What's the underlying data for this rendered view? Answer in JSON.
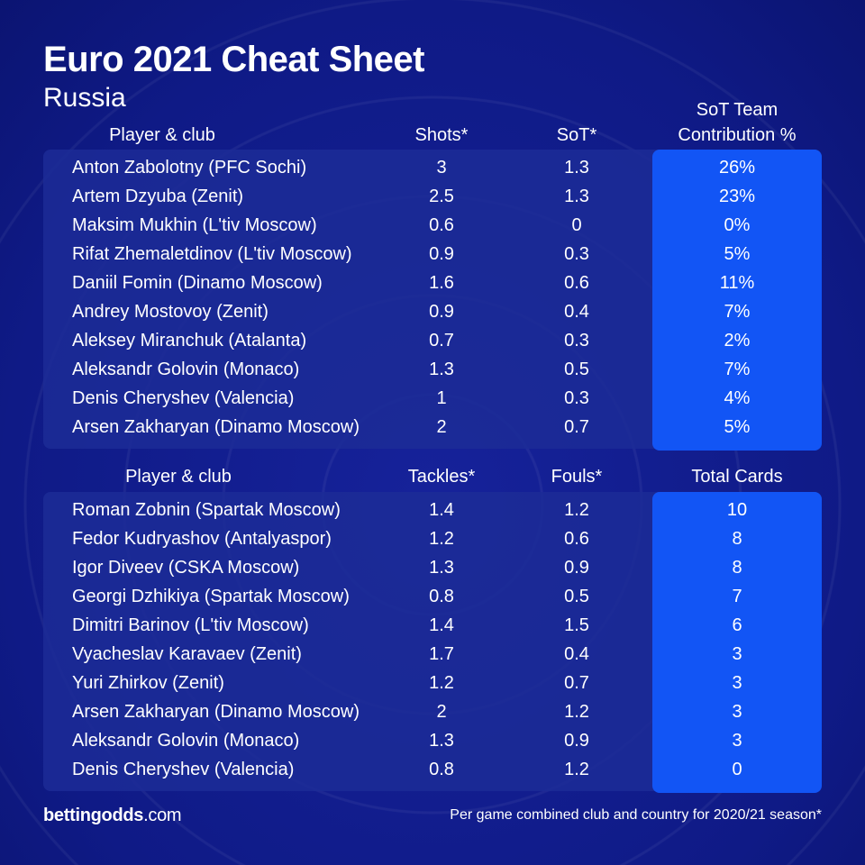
{
  "title": "Euro 2021 Cheat Sheet",
  "subtitle": "Russia",
  "table1": {
    "headers": {
      "player": "Player & club",
      "a": "Shots*",
      "b": "SoT*",
      "c_line1": "SoT Team",
      "c_line2": "Contribution %"
    },
    "rows": [
      {
        "name": "Anton Zabolotny (PFC Sochi)",
        "a": "3",
        "b": "1.3",
        "c": "26%"
      },
      {
        "name": "Artem Dzyuba (Zenit)",
        "a": "2.5",
        "b": "1.3",
        "c": "23%"
      },
      {
        "name": "Maksim Mukhin (L'tiv Moscow)",
        "a": "0.6",
        "b": "0",
        "c": "0%"
      },
      {
        "name": "Rifat Zhemaletdinov (L'tiv Moscow)",
        "a": "0.9",
        "b": "0.3",
        "c": "5%"
      },
      {
        "name": "Daniil Fomin (Dinamo Moscow)",
        "a": "1.6",
        "b": "0.6",
        "c": "11%"
      },
      {
        "name": "Andrey Mostovoy (Zenit)",
        "a": "0.9",
        "b": "0.4",
        "c": "7%"
      },
      {
        "name": "Aleksey Miranchuk (Atalanta)",
        "a": "0.7",
        "b": "0.3",
        "c": "2%"
      },
      {
        "name": "Aleksandr Golovin (Monaco)",
        "a": "1.3",
        "b": "0.5",
        "c": "7%"
      },
      {
        "name": "Denis Cheryshev (Valencia)",
        "a": "1",
        "b": "0.3",
        "c": "4%"
      },
      {
        "name": "Arsen Zakharyan (Dinamo Moscow)",
        "a": "2",
        "b": "0.7",
        "c": "5%"
      }
    ]
  },
  "table2": {
    "headers": {
      "player": "Player & club",
      "a": "Tackles*",
      "b": "Fouls*",
      "c": "Total Cards"
    },
    "rows": [
      {
        "name": "Roman Zobnin (Spartak Moscow)",
        "a": "1.4",
        "b": "1.2",
        "c": "10"
      },
      {
        "name": "Fedor Kudryashov (Antalyaspor)",
        "a": "1.2",
        "b": "0.6",
        "c": "8"
      },
      {
        "name": "Igor Diveev (CSKA Moscow)",
        "a": "1.3",
        "b": "0.9",
        "c": "8"
      },
      {
        "name": "Georgi Dzhikiya (Spartak Moscow)",
        "a": "0.8",
        "b": "0.5",
        "c": "7"
      },
      {
        "name": "Dimitri Barinov (L'tiv Moscow)",
        "a": "1.4",
        "b": "1.5",
        "c": "6"
      },
      {
        "name": "Vyacheslav Karavaev (Zenit)",
        "a": "1.7",
        "b": "0.4",
        "c": "3"
      },
      {
        "name": "Yuri Zhirkov (Zenit)",
        "a": "1.2",
        "b": "0.7",
        "c": "3"
      },
      {
        "name": "Arsen Zakharyan (Dinamo Moscow)",
        "a": "2",
        "b": "1.2",
        "c": "3"
      },
      {
        "name": "Aleksandr Golovin (Monaco)",
        "a": "1.3",
        "b": "0.9",
        "c": "3"
      },
      {
        "name": "Denis Cheryshev (Valencia)",
        "a": "0.8",
        "b": "1.2",
        "c": "0"
      }
    ]
  },
  "footer": {
    "logo_bold": "bettingodds",
    "logo_rest": ".com",
    "note": "Per game combined club and country for 2020/21 season*"
  },
  "colors": {
    "background": "#0f1a86",
    "panel": "#1c2c96",
    "highlight": "#1255f5",
    "text": "#ffffff"
  }
}
